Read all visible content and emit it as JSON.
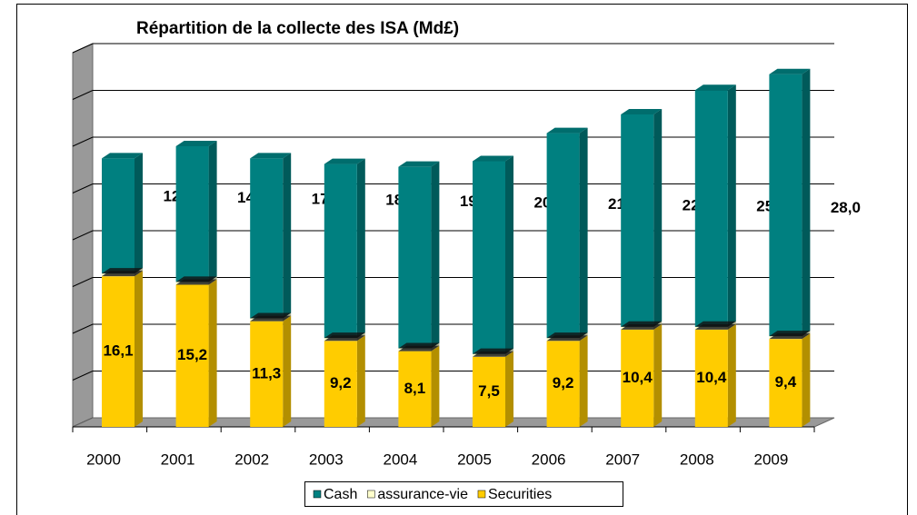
{
  "chart_data": {
    "type": "bar3d_stacked",
    "title": "Répartition de la collecte des ISA (Md£)",
    "categories": [
      "2000",
      "2001",
      "2002",
      "2003",
      "2004",
      "2005",
      "2006",
      "2007",
      "2008",
      "2009"
    ],
    "series": [
      {
        "name": "Securities",
        "color": "#ffcc00",
        "values": [
          16.1,
          15.2,
          11.3,
          9.2,
          8.1,
          7.5,
          9.2,
          10.4,
          10.4,
          9.4
        ],
        "value_labels": [
          "16,1",
          "15,2",
          "11,3",
          "9,2",
          "8,1",
          "7,5",
          "9,2",
          "10,4",
          "10,4",
          "9,4"
        ]
      },
      {
        "name": "assurance-vie",
        "color": "#ffffcc",
        "values": [
          0.3,
          0.3,
          0.3,
          0.3,
          0.3,
          0.3,
          0.3,
          0.3,
          0.3,
          0.3
        ]
      },
      {
        "name": "Cash",
        "color": "#008080",
        "values": [
          12.3,
          14.5,
          17.1,
          18.6,
          19.4,
          20.6,
          21.9,
          22.7,
          25.3,
          28.0
        ],
        "value_labels": [
          "12,3",
          "14,5",
          "17,1",
          "18,6",
          "19,4",
          "20,6",
          "21,9",
          "22,7",
          "25,3",
          "28,0"
        ]
      }
    ],
    "legend_order": [
      "Cash",
      "assurance-vie",
      "Securities"
    ],
    "ylim": [
      0,
      40
    ],
    "yticks": [
      0,
      5,
      10,
      15,
      20,
      25,
      30,
      35,
      40
    ],
    "grid": true
  }
}
